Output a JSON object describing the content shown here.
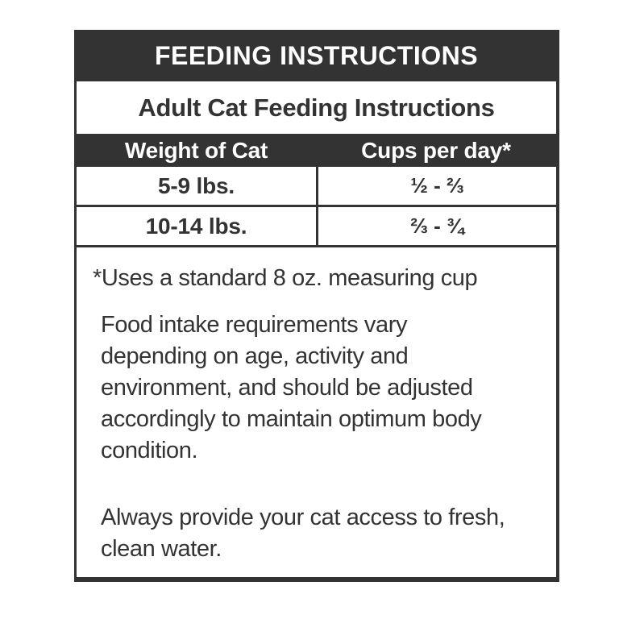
{
  "label": {
    "title": "FEEDING INSTRUCTIONS",
    "subtitle": "Adult Cat Feeding Instructions",
    "table": {
      "headers": [
        "Weight of Cat",
        "Cups per day*"
      ],
      "rows": [
        {
          "weight": "5-9 lbs.",
          "cups": "½ - ⅔"
        },
        {
          "weight": "10-14 lbs.",
          "cups": "⅔ - ¾"
        }
      ]
    },
    "footnote": "*Uses a standard 8 oz. measuring cup",
    "paragraphs": {
      "intake": "Food intake requirements vary\ndepending on age, activity and\nenvironment, and should be adjusted\naccordingly to maintain optimum body\ncondition.",
      "water": "Always provide your cat access to fresh,\nclean water."
    },
    "colors": {
      "dark": "#333333",
      "text": "#333333",
      "background": "#ffffff"
    }
  }
}
